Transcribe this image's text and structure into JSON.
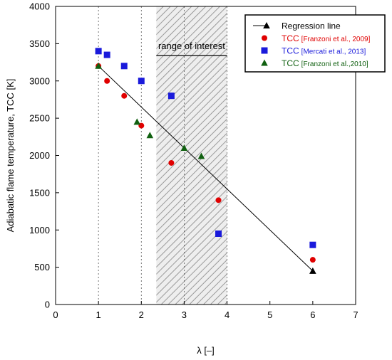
{
  "chart_data": {
    "type": "scatter",
    "xlabel": "λ [–]",
    "ylabel": "Adiabatic flame temperature, TCC [K]",
    "xlim": [
      0,
      7
    ],
    "ylim": [
      0,
      4000
    ],
    "xticks": [
      0,
      1,
      2,
      3,
      4,
      5,
      6,
      7
    ],
    "yticks": [
      0,
      500,
      1000,
      1500,
      2000,
      2500,
      3000,
      3500,
      4000
    ],
    "grid": "dashed vertical lines at x = 1, 2, 3, 4",
    "legend_position": "top-right",
    "shaded_region": {
      "x_range": [
        2.35,
        4.0
      ],
      "pattern": "diagonal hatch"
    },
    "annotation": {
      "text": "range of interest",
      "x_range": [
        2.35,
        4.0
      ],
      "y": 3340
    },
    "series": [
      {
        "name": "Regression line",
        "label_main": "Regression line",
        "label_ref": "",
        "kind": "line",
        "color": "#000000",
        "marker": "triangle",
        "x": [
          1.0,
          6.0
        ],
        "y": [
          3200,
          450
        ]
      },
      {
        "name": "TCC [Franzoni et al., 2009]",
        "label_main": "TCC",
        "label_ref": "[Franzoni et al., 2009]",
        "kind": "scatter",
        "color": "#e00000",
        "marker": "circle",
        "x": [
          1.0,
          1.2,
          1.6,
          2.0,
          2.7,
          3.8,
          6.0
        ],
        "y": [
          3200,
          3000,
          2800,
          2400,
          1900,
          1400,
          600
        ]
      },
      {
        "name": "TCC [Mercati et al., 2013]",
        "label_main": "TCC",
        "label_ref": "[Mercati et al., 2013]",
        "kind": "scatter",
        "color": "#1a1adb",
        "marker": "square",
        "x": [
          1.0,
          1.2,
          1.6,
          2.0,
          2.7,
          3.8,
          6.0
        ],
        "y": [
          3400,
          3350,
          3200,
          3000,
          2800,
          950,
          800
        ]
      },
      {
        "name": "TCC [Franzoni et al.,2010]",
        "label_main": "TCC",
        "label_ref": "[Franzoni et al.,2010]",
        "kind": "scatter",
        "color": "#106010",
        "marker": "triangle",
        "x": [
          1.0,
          1.9,
          2.2,
          3.0,
          3.4
        ],
        "y": [
          3200,
          2450,
          2270,
          2100,
          1990
        ]
      }
    ]
  }
}
